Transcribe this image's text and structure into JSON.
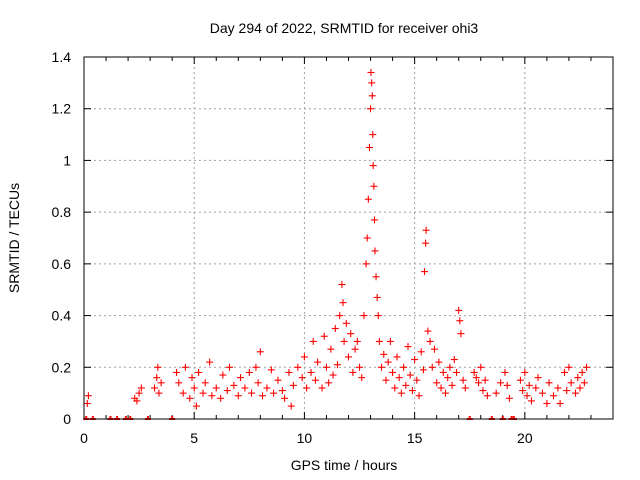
{
  "chart_data": {
    "type": "scatter",
    "title": "Day 294 of 2022, SRMTID for receiver ohi3",
    "xlabel": "GPS time / hours",
    "ylabel": "SRMTID / TECUs",
    "xlim": [
      0,
      24
    ],
    "ylim": [
      0,
      1.4
    ],
    "xticks": [
      0,
      5,
      10,
      15,
      20
    ],
    "yticks": [
      0,
      0.2,
      0.4,
      0.6,
      0.8,
      1,
      1.2,
      1.4
    ],
    "xtick_labels": [
      "0",
      "5",
      "10",
      "15",
      "20"
    ],
    "ytick_labels": [
      "0",
      "0.2",
      "0.4",
      "0.6",
      "0.8",
      "1",
      "1.2",
      "1.4"
    ],
    "grid": true,
    "marker": "+",
    "color": "#ff0000",
    "series": [
      {
        "name": "SRMTID",
        "points": [
          [
            0.1,
            0.0
          ],
          [
            0.15,
            0.06
          ],
          [
            0.2,
            0.09
          ],
          [
            0.4,
            0.0
          ],
          [
            1.2,
            0.0
          ],
          [
            1.5,
            0.0
          ],
          [
            1.9,
            0.0
          ],
          [
            2.1,
            0.0
          ],
          [
            2.3,
            0.08
          ],
          [
            2.4,
            0.07
          ],
          [
            2.5,
            0.1
          ],
          [
            2.6,
            0.12
          ],
          [
            2.9,
            0.0
          ],
          [
            3.2,
            0.12
          ],
          [
            3.3,
            0.16
          ],
          [
            3.35,
            0.2
          ],
          [
            3.4,
            0.1
          ],
          [
            3.5,
            0.14
          ],
          [
            4.0,
            0.0
          ],
          [
            4.2,
            0.18
          ],
          [
            4.3,
            0.14
          ],
          [
            4.5,
            0.1
          ],
          [
            4.6,
            0.2
          ],
          [
            4.8,
            0.08
          ],
          [
            4.9,
            0.16
          ],
          [
            5.0,
            0.12
          ],
          [
            5.1,
            0.05
          ],
          [
            5.2,
            0.18
          ],
          [
            5.4,
            0.1
          ],
          [
            5.5,
            0.14
          ],
          [
            5.7,
            0.22
          ],
          [
            5.8,
            0.09
          ],
          [
            6.0,
            0.12
          ],
          [
            6.2,
            0.08
          ],
          [
            6.3,
            0.17
          ],
          [
            6.5,
            0.11
          ],
          [
            6.6,
            0.2
          ],
          [
            6.8,
            0.13
          ],
          [
            7.0,
            0.09
          ],
          [
            7.1,
            0.16
          ],
          [
            7.3,
            0.12
          ],
          [
            7.5,
            0.18
          ],
          [
            7.6,
            0.1
          ],
          [
            7.8,
            0.2
          ],
          [
            7.9,
            0.14
          ],
          [
            8.0,
            0.26
          ],
          [
            8.1,
            0.09
          ],
          [
            8.3,
            0.12
          ],
          [
            8.5,
            0.19
          ],
          [
            8.6,
            0.1
          ],
          [
            8.8,
            0.15
          ],
          [
            9.0,
            0.11
          ],
          [
            9.1,
            0.08
          ],
          [
            9.3,
            0.18
          ],
          [
            9.4,
            0.05
          ],
          [
            9.5,
            0.13
          ],
          [
            9.7,
            0.2
          ],
          [
            9.9,
            0.16
          ],
          [
            10.0,
            0.24
          ],
          [
            10.1,
            0.12
          ],
          [
            10.3,
            0.18
          ],
          [
            10.4,
            0.3
          ],
          [
            10.5,
            0.15
          ],
          [
            10.6,
            0.22
          ],
          [
            10.8,
            0.12
          ],
          [
            10.9,
            0.32
          ],
          [
            11.0,
            0.2
          ],
          [
            11.1,
            0.14
          ],
          [
            11.2,
            0.27
          ],
          [
            11.3,
            0.17
          ],
          [
            11.4,
            0.35
          ],
          [
            11.5,
            0.21
          ],
          [
            11.6,
            0.4
          ],
          [
            11.7,
            0.52
          ],
          [
            11.75,
            0.45
          ],
          [
            11.8,
            0.3
          ],
          [
            11.9,
            0.37
          ],
          [
            12.0,
            0.24
          ],
          [
            12.1,
            0.33
          ],
          [
            12.2,
            0.18
          ],
          [
            12.3,
            0.27
          ],
          [
            12.4,
            0.3
          ],
          [
            12.5,
            0.2
          ],
          [
            12.6,
            0.16
          ],
          [
            12.7,
            0.4
          ],
          [
            12.8,
            0.6
          ],
          [
            12.85,
            0.7
          ],
          [
            12.9,
            0.85
          ],
          [
            12.95,
            1.05
          ],
          [
            13.0,
            1.2
          ],
          [
            13.02,
            1.34
          ],
          [
            13.05,
            1.3
          ],
          [
            13.08,
            1.25
          ],
          [
            13.1,
            1.1
          ],
          [
            13.12,
            0.98
          ],
          [
            13.15,
            0.9
          ],
          [
            13.18,
            0.77
          ],
          [
            13.2,
            0.65
          ],
          [
            13.25,
            0.55
          ],
          [
            13.3,
            0.47
          ],
          [
            13.35,
            0.4
          ],
          [
            13.4,
            0.3
          ],
          [
            13.5,
            0.2
          ],
          [
            13.6,
            0.25
          ],
          [
            13.7,
            0.15
          ],
          [
            13.8,
            0.22
          ],
          [
            13.9,
            0.3
          ],
          [
            14.0,
            0.18
          ],
          [
            14.1,
            0.12
          ],
          [
            14.2,
            0.24
          ],
          [
            14.3,
            0.16
          ],
          [
            14.4,
            0.1
          ],
          [
            14.5,
            0.2
          ],
          [
            14.6,
            0.13
          ],
          [
            14.7,
            0.28
          ],
          [
            14.8,
            0.17
          ],
          [
            14.9,
            0.11
          ],
          [
            15.0,
            0.23
          ],
          [
            15.1,
            0.15
          ],
          [
            15.2,
            0.09
          ],
          [
            15.3,
            0.26
          ],
          [
            15.4,
            0.19
          ],
          [
            15.45,
            0.57
          ],
          [
            15.5,
            0.68
          ],
          [
            15.52,
            0.73
          ],
          [
            15.6,
            0.34
          ],
          [
            15.7,
            0.3
          ],
          [
            15.8,
            0.2
          ],
          [
            15.9,
            0.27
          ],
          [
            16.0,
            0.14
          ],
          [
            16.1,
            0.22
          ],
          [
            16.2,
            0.12
          ],
          [
            16.3,
            0.18
          ],
          [
            16.4,
            0.1
          ],
          [
            16.5,
            0.16
          ],
          [
            16.6,
            0.2
          ],
          [
            16.7,
            0.13
          ],
          [
            16.8,
            0.23
          ],
          [
            16.9,
            0.18
          ],
          [
            17.0,
            0.42
          ],
          [
            17.05,
            0.38
          ],
          [
            17.1,
            0.33
          ],
          [
            17.2,
            0.15
          ],
          [
            17.3,
            0.12
          ],
          [
            17.5,
            0.0
          ],
          [
            17.7,
            0.18
          ],
          [
            17.8,
            0.16
          ],
          [
            17.9,
            0.14
          ],
          [
            18.0,
            0.2
          ],
          [
            18.1,
            0.11
          ],
          [
            18.2,
            0.15
          ],
          [
            18.3,
            0.09
          ],
          [
            18.5,
            0.0
          ],
          [
            18.7,
            0.1
          ],
          [
            18.9,
            0.14
          ],
          [
            19.0,
            0.0
          ],
          [
            19.1,
            0.18
          ],
          [
            19.2,
            0.13
          ],
          [
            19.3,
            0.08
          ],
          [
            19.4,
            0.0
          ],
          [
            19.5,
            0.0
          ],
          [
            19.8,
            0.15
          ],
          [
            19.9,
            0.11
          ],
          [
            20.0,
            0.18
          ],
          [
            20.1,
            0.09
          ],
          [
            20.2,
            0.13
          ],
          [
            20.3,
            0.07
          ],
          [
            20.5,
            0.12
          ],
          [
            20.6,
            0.16
          ],
          [
            20.8,
            0.1
          ],
          [
            21.0,
            0.06
          ],
          [
            21.1,
            0.14
          ],
          [
            21.3,
            0.09
          ],
          [
            21.5,
            0.12
          ],
          [
            21.6,
            0.06
          ],
          [
            21.8,
            0.18
          ],
          [
            21.9,
            0.11
          ],
          [
            22.0,
            0.2
          ],
          [
            22.1,
            0.14
          ],
          [
            22.3,
            0.1
          ],
          [
            22.4,
            0.16
          ],
          [
            22.5,
            0.12
          ],
          [
            22.6,
            0.18
          ],
          [
            22.7,
            0.14
          ],
          [
            22.8,
            0.2
          ]
        ]
      }
    ]
  }
}
